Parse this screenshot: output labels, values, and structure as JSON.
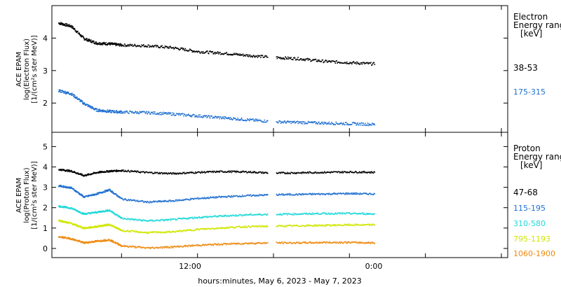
{
  "xlabel": "hours:minutes, May  6, 2023 - May  7, 2023",
  "x_ticks": [
    "12:00",
    "0:00"
  ],
  "chart_data": [
    {
      "type": "scatter",
      "name": "electron",
      "ylabel_lines": [
        "ACE EPAM",
        "log(Electron Flux)",
        "[1/(cm²s ster MeV)]"
      ],
      "y_ticks": [
        2,
        3,
        4
      ],
      "ylim": [
        1.1,
        5.0
      ],
      "xlim_hours": [
        -17.5,
        18.5
      ],
      "legend_title": [
        "Electron",
        "Energy ranges",
        "[keV]"
      ],
      "series": [
        {
          "name": "38-53",
          "color": "#000000",
          "x": [
            -17,
            -16,
            -15,
            -14,
            -13,
            -12,
            -10,
            -8,
            -6,
            -4,
            -2,
            0,
            2,
            4,
            6,
            8
          ],
          "y": [
            4.48,
            4.38,
            4.0,
            3.86,
            3.84,
            3.8,
            3.78,
            3.72,
            3.6,
            3.55,
            3.48,
            3.42,
            3.38,
            3.3,
            3.26,
            3.22
          ]
        },
        {
          "name": "175-315",
          "color": "#1f6fd0",
          "x": [
            -17,
            -16,
            -15,
            -14,
            -13,
            -12,
            -10,
            -8,
            -6,
            -4,
            -2,
            0,
            2,
            4,
            6,
            8
          ],
          "y": [
            2.4,
            2.3,
            2.0,
            1.8,
            1.76,
            1.74,
            1.72,
            1.68,
            1.62,
            1.56,
            1.5,
            1.44,
            1.42,
            1.4,
            1.38,
            1.36
          ]
        }
      ]
    },
    {
      "type": "scatter",
      "name": "proton",
      "ylabel_lines": [
        "ACE EPAM",
        "log(Proton Flux)",
        "[1/(cm²s ster MeV)]"
      ],
      "y_ticks": [
        0,
        1,
        2,
        3,
        4,
        5
      ],
      "ylim": [
        -0.45,
        5.7
      ],
      "xlim_hours": [
        -17.5,
        18.5
      ],
      "legend_title": [
        "Proton",
        "Energy ranges",
        "[keV]"
      ],
      "series": [
        {
          "name": "47-68",
          "color": "#000000",
          "x": [
            -17,
            -16,
            -15,
            -14,
            -13,
            -12,
            -10,
            -8,
            -6,
            -4,
            -2,
            0,
            2,
            4,
            6,
            8
          ],
          "y": [
            3.9,
            3.82,
            3.6,
            3.75,
            3.82,
            3.85,
            3.75,
            3.7,
            3.76,
            3.8,
            3.78,
            3.72,
            3.74,
            3.76,
            3.78,
            3.76
          ]
        },
        {
          "name": "115-195",
          "color": "#1f6fd0",
          "x": [
            -17,
            -16,
            -15,
            -14,
            -13,
            -12,
            -10,
            -8,
            -6,
            -4,
            -2,
            0,
            2,
            4,
            6,
            8
          ],
          "y": [
            3.1,
            3.0,
            2.55,
            2.7,
            2.9,
            2.45,
            2.3,
            2.36,
            2.48,
            2.56,
            2.62,
            2.66,
            2.68,
            2.7,
            2.72,
            2.7
          ]
        },
        {
          "name": "310-580",
          "color": "#22d8d8",
          "x": [
            -17,
            -16,
            -15,
            -14,
            -13,
            -12,
            -10,
            -8,
            -6,
            -4,
            -2,
            0,
            2,
            4,
            6,
            8
          ],
          "y": [
            2.1,
            2.0,
            1.72,
            1.8,
            1.9,
            1.5,
            1.38,
            1.44,
            1.55,
            1.62,
            1.68,
            1.7,
            1.72,
            1.74,
            1.74,
            1.72
          ]
        },
        {
          "name": "795-1193",
          "color": "#cfe600",
          "x": [
            -17,
            -16,
            -15,
            -14,
            -13,
            -12,
            -10,
            -8,
            -6,
            -4,
            -2,
            0,
            2,
            4,
            6,
            8
          ],
          "y": [
            1.4,
            1.25,
            1.02,
            1.1,
            1.2,
            0.9,
            0.8,
            0.84,
            0.96,
            1.04,
            1.1,
            1.12,
            1.14,
            1.16,
            1.18,
            1.18
          ]
        },
        {
          "name": "1060-1900",
          "color": "#ee8a10",
          "x": [
            -17,
            -16,
            -15,
            -14,
            -13,
            -12,
            -10,
            -8,
            -6,
            -4,
            -2,
            0,
            2,
            4,
            6,
            8
          ],
          "y": [
            0.6,
            0.5,
            0.3,
            0.38,
            0.45,
            0.15,
            0.05,
            0.1,
            0.18,
            0.24,
            0.28,
            0.3,
            0.3,
            0.32,
            0.32,
            0.3
          ]
        }
      ]
    }
  ]
}
